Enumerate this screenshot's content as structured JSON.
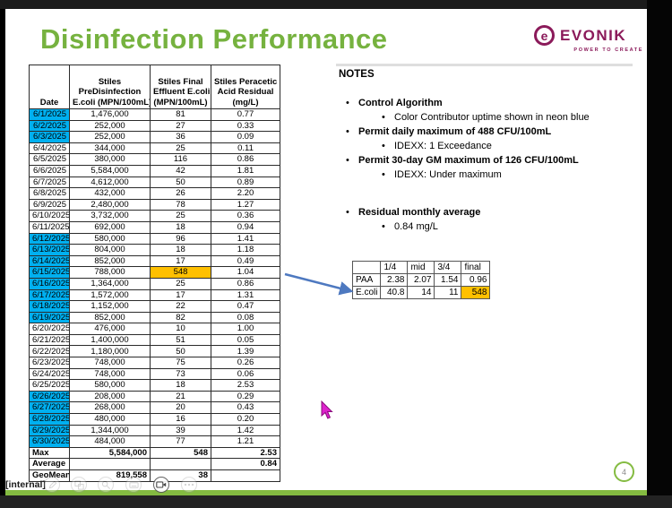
{
  "chrome": {
    "internal_label": "[internal]",
    "toolbar_icons": [
      "pen-icon",
      "slides-grid-icon",
      "magnifier-icon",
      "subtitles-icon",
      "camera-icon",
      "more-options-icon"
    ]
  },
  "slide": {
    "title": "Disinfection Performance",
    "logo": {
      "mark": "e",
      "brand": "EVONIK",
      "tagline": "POWER TO CREATE"
    },
    "page_number": "4"
  },
  "colors": {
    "title_green": "#76b23f",
    "strip_green": "#84bb41",
    "brand_purple": "#8b1a5a",
    "neon_blue_highlight": "#00b0f0",
    "orange_highlight": "#ffc000",
    "arrow_blue": "#4e79c0",
    "cursor_magenta": "#dd22cc"
  },
  "table": {
    "headers": [
      {
        "lines": [
          "Date"
        ]
      },
      {
        "lines": [
          "Stiles",
          "PreDisinfection",
          "E.coli (MPN/100mL)"
        ]
      },
      {
        "lines": [
          "Stiles Final",
          "Effluent E.coli",
          "(MPN/100mL)"
        ]
      },
      {
        "lines": [
          "Stiles Peracetic",
          "Acid Residual",
          "(mg/L)"
        ]
      }
    ],
    "rows": [
      {
        "date": "6/1/2025",
        "pre": "1,476,000",
        "final": "81",
        "residual": "0.77",
        "blue": true,
        "final_highlight": false
      },
      {
        "date": "6/2/2025",
        "pre": "252,000",
        "final": "27",
        "residual": "0.33",
        "blue": true,
        "final_highlight": false
      },
      {
        "date": "6/3/2025",
        "pre": "252,000",
        "final": "36",
        "residual": "0.09",
        "blue": true,
        "final_highlight": false
      },
      {
        "date": "6/4/2025",
        "pre": "344,000",
        "final": "25",
        "residual": "0.11",
        "blue": false,
        "final_highlight": false
      },
      {
        "date": "6/5/2025",
        "pre": "380,000",
        "final": "116",
        "residual": "0.86",
        "blue": false,
        "final_highlight": false
      },
      {
        "date": "6/6/2025",
        "pre": "5,584,000",
        "final": "42",
        "residual": "1.81",
        "blue": false,
        "final_highlight": false
      },
      {
        "date": "6/7/2025",
        "pre": "4,612,000",
        "final": "50",
        "residual": "0.89",
        "blue": false,
        "final_highlight": false
      },
      {
        "date": "6/8/2025",
        "pre": "432,000",
        "final": "26",
        "residual": "2.20",
        "blue": false,
        "final_highlight": false
      },
      {
        "date": "6/9/2025",
        "pre": "2,480,000",
        "final": "78",
        "residual": "1.27",
        "blue": false,
        "final_highlight": false
      },
      {
        "date": "6/10/2025",
        "pre": "3,732,000",
        "final": "25",
        "residual": "0.36",
        "blue": false,
        "final_highlight": false
      },
      {
        "date": "6/11/2025",
        "pre": "692,000",
        "final": "18",
        "residual": "0.94",
        "blue": false,
        "final_highlight": false
      },
      {
        "date": "6/12/2025",
        "pre": "580,000",
        "final": "96",
        "residual": "1.41",
        "blue": true,
        "final_highlight": false
      },
      {
        "date": "6/13/2025",
        "pre": "804,000",
        "final": "18",
        "residual": "1.18",
        "blue": true,
        "final_highlight": false
      },
      {
        "date": "6/14/2025",
        "pre": "852,000",
        "final": "17",
        "residual": "0.49",
        "blue": true,
        "final_highlight": false
      },
      {
        "date": "6/15/2025",
        "pre": "788,000",
        "final": "548",
        "residual": "1.04",
        "blue": true,
        "final_highlight": true
      },
      {
        "date": "6/16/2025",
        "pre": "1,364,000",
        "final": "25",
        "residual": "0.86",
        "blue": true,
        "final_highlight": false
      },
      {
        "date": "6/17/2025",
        "pre": "1,572,000",
        "final": "17",
        "residual": "1.31",
        "blue": true,
        "final_highlight": false
      },
      {
        "date": "6/18/2025",
        "pre": "1,152,000",
        "final": "22",
        "residual": "0.47",
        "blue": true,
        "final_highlight": false
      },
      {
        "date": "6/19/2025",
        "pre": "852,000",
        "final": "82",
        "residual": "0.08",
        "blue": true,
        "final_highlight": false
      },
      {
        "date": "6/20/2025",
        "pre": "476,000",
        "final": "10",
        "residual": "1.00",
        "blue": false,
        "final_highlight": false
      },
      {
        "date": "6/21/2025",
        "pre": "1,400,000",
        "final": "51",
        "residual": "0.05",
        "blue": false,
        "final_highlight": false
      },
      {
        "date": "6/22/2025",
        "pre": "1,180,000",
        "final": "50",
        "residual": "1.39",
        "blue": false,
        "final_highlight": false
      },
      {
        "date": "6/23/2025",
        "pre": "748,000",
        "final": "75",
        "residual": "0.26",
        "blue": false,
        "final_highlight": false
      },
      {
        "date": "6/24/2025",
        "pre": "748,000",
        "final": "73",
        "residual": "0.06",
        "blue": false,
        "final_highlight": false
      },
      {
        "date": "6/25/2025",
        "pre": "580,000",
        "final": "18",
        "residual": "2.53",
        "blue": false,
        "final_highlight": false
      },
      {
        "date": "6/26/2025",
        "pre": "208,000",
        "final": "21",
        "residual": "0.29",
        "blue": true,
        "final_highlight": false
      },
      {
        "date": "6/27/2025",
        "pre": "268,000",
        "final": "20",
        "residual": "0.43",
        "blue": true,
        "final_highlight": false
      },
      {
        "date": "6/28/2025",
        "pre": "480,000",
        "final": "16",
        "residual": "0.20",
        "blue": true,
        "final_highlight": false
      },
      {
        "date": "6/29/2025",
        "pre": "1,344,000",
        "final": "39",
        "residual": "1.42",
        "blue": true,
        "final_highlight": false
      },
      {
        "date": "6/30/2025",
        "pre": "484,000",
        "final": "77",
        "residual": "1.21",
        "blue": true,
        "final_highlight": false
      }
    ],
    "summary": [
      {
        "label": "Max",
        "pre": "5,584,000",
        "final": "548",
        "residual": "2.53"
      },
      {
        "label": "Average",
        "pre": "",
        "final": "",
        "residual": "0.84"
      },
      {
        "label": "GeoMean",
        "pre": "819,558",
        "final": "38",
        "residual": ""
      }
    ]
  },
  "notes": {
    "heading": "NOTES",
    "items": [
      {
        "level": 1,
        "bold": true,
        "gap": false,
        "text": "Control Algorithm"
      },
      {
        "level": 2,
        "bold": false,
        "gap": false,
        "text": "Color Contributor uptime shown in neon blue"
      },
      {
        "level": 1,
        "bold": true,
        "gap": false,
        "text": "Permit daily maximum of 488 CFU/100mL"
      },
      {
        "level": 2,
        "bold": false,
        "gap": false,
        "text": "IDEXX: 1 Exceedance"
      },
      {
        "level": 1,
        "bold": true,
        "gap": false,
        "text": "Permit 30-day GM maximum of 126 CFU/100mL"
      },
      {
        "level": 2,
        "bold": false,
        "gap": false,
        "text": "IDEXX: Under maximum"
      },
      {
        "level": 1,
        "bold": true,
        "gap": true,
        "text": "Residual monthly average"
      },
      {
        "level": 2,
        "bold": false,
        "gap": false,
        "text": "0.84 mg/L"
      }
    ]
  },
  "mini_table": {
    "headers": [
      "",
      "1/4",
      "mid",
      "3/4",
      "final"
    ],
    "rows": [
      {
        "label": "PAA",
        "values": [
          "2.38",
          "2.07",
          "1.54",
          "0.96"
        ],
        "highlight_last": false
      },
      {
        "label": "E.coli",
        "values": [
          "40.8",
          "14",
          "11",
          "548"
        ],
        "highlight_last": true
      }
    ]
  }
}
